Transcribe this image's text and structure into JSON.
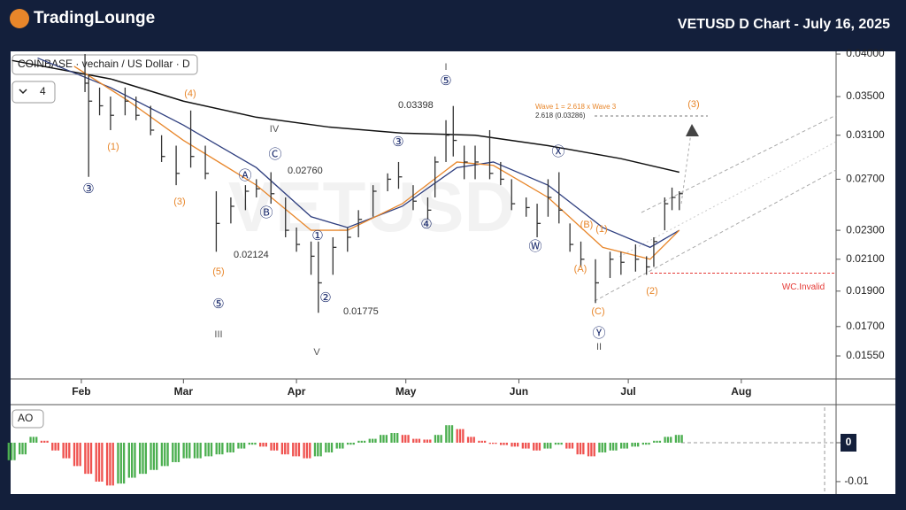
{
  "header": {
    "logo": "TradingLounge",
    "title": "VETUSD D Chart - July 16, 2025"
  },
  "chart_data": [
    {
      "type": "ohlc",
      "legend": "COINBASE · vechain / US Dollar · D",
      "interval_badge": 4,
      "watermark": "VETUSD",
      "log_scale": true,
      "bar_color": "#333333",
      "x": [
        33,
        34,
        37,
        40,
        44,
        47,
        51,
        54,
        58,
        62,
        66,
        69,
        73,
        77,
        80,
        84,
        88,
        91,
        95,
        97,
        101,
        105,
        108,
        112,
        116,
        119,
        123,
        127,
        129,
        132,
        134,
        137,
        140,
        144,
        147,
        150,
        154,
        157,
        160,
        163,
        166,
        169,
        173,
        177,
        180,
        184,
        187,
        189,
        192,
        194,
        196
      ],
      "high": [
        0.04,
        0.0375,
        0.036,
        0.035,
        0.036,
        0.035,
        0.034,
        0.031,
        0.03,
        0.0335,
        0.03,
        0.026,
        0.0255,
        0.0265,
        0.027,
        0.0276,
        0.0255,
        0.0232,
        0.0222,
        0.0222,
        0.0225,
        0.0232,
        0.0245,
        0.0265,
        0.0275,
        0.0285,
        0.0265,
        0.0255,
        0.029,
        0.0325,
        0.03398,
        0.03,
        0.03,
        0.0315,
        0.0285,
        0.027,
        0.0255,
        0.025,
        0.027,
        0.0276,
        0.0235,
        0.0222,
        0.021,
        0.0215,
        0.0215,
        0.022,
        0.0212,
        0.0225,
        0.0255,
        0.0263,
        0.026
      ],
      "low": [
        0.0355,
        0.0272,
        0.033,
        0.0315,
        0.033,
        0.0325,
        0.031,
        0.0285,
        0.0265,
        0.028,
        0.027,
        0.0215,
        0.0235,
        0.0245,
        0.0255,
        0.025,
        0.0225,
        0.0215,
        0.02,
        0.01775,
        0.02,
        0.0215,
        0.0225,
        0.024,
        0.026,
        0.0262,
        0.0245,
        0.0238,
        0.0255,
        0.0285,
        0.029,
        0.027,
        0.027,
        0.027,
        0.0265,
        0.0245,
        0.024,
        0.0225,
        0.024,
        0.0235,
        0.0215,
        0.0205,
        0.0183,
        0.0198,
        0.02,
        0.0202,
        0.02,
        0.0205,
        0.023,
        0.0245,
        0.0245
      ],
      "close": [
        0.0365,
        0.0345,
        0.034,
        0.033,
        0.0345,
        0.033,
        0.0315,
        0.029,
        0.0275,
        0.029,
        0.0275,
        0.0235,
        0.0248,
        0.026,
        0.0262,
        0.0258,
        0.023,
        0.022,
        0.0212,
        0.0195,
        0.0218,
        0.0225,
        0.0238,
        0.026,
        0.027,
        0.0272,
        0.0252,
        0.0245,
        0.0285,
        0.031,
        0.0305,
        0.0285,
        0.0285,
        0.0275,
        0.027,
        0.025,
        0.0247,
        0.0235,
        0.0255,
        0.0245,
        0.022,
        0.021,
        0.0195,
        0.021,
        0.0208,
        0.021,
        0.0205,
        0.0222,
        0.025,
        0.0255,
        0.0258
      ],
      "series": [
        {
          "color": "#111111",
          "x": [
            13,
            40,
            60,
            80,
            100,
            120,
            140,
            160,
            180,
            196
          ],
          "values": [
            0.0392,
            0.037,
            0.0345,
            0.0328,
            0.0318,
            0.0312,
            0.031,
            0.03,
            0.0288,
            0.0276
          ]
        },
        {
          "color": "#2f3f7f",
          "x": [
            20,
            40,
            60,
            80,
            95,
            105,
            120,
            135,
            145,
            160,
            175,
            188,
            196
          ],
          "values": [
            0.0395,
            0.036,
            0.032,
            0.028,
            0.024,
            0.0232,
            0.0248,
            0.028,
            0.0285,
            0.0265,
            0.0232,
            0.0218,
            0.023
          ]
        },
        {
          "color": "#e8862a",
          "x": [
            30,
            45,
            60,
            80,
            95,
            105,
            120,
            135,
            145,
            160,
            175,
            188,
            196
          ],
          "values": [
            0.0385,
            0.0345,
            0.0305,
            0.0265,
            0.023,
            0.023,
            0.025,
            0.0285,
            0.0282,
            0.0255,
            0.0218,
            0.021,
            0.023
          ]
        }
      ],
      "xlim": [
        12.6,
        239
      ],
      "xticks": [
        {
          "value": 32,
          "label": "Feb"
        },
        {
          "value": 60,
          "label": "Mar"
        },
        {
          "value": 91,
          "label": "Apr"
        },
        {
          "value": 121,
          "label": "May"
        },
        {
          "value": 152,
          "label": "Jun"
        },
        {
          "value": 182,
          "label": "Jul"
        },
        {
          "value": 213,
          "label": "Aug"
        }
      ],
      "ylim": [
        0.01442,
        0.04034
      ],
      "yticks": [
        {
          "value": 0.04,
          "label": "0.04000"
        },
        {
          "value": 0.035,
          "label": "0.03500"
        },
        {
          "value": 0.031,
          "label": "0.03100"
        },
        {
          "value": 0.027,
          "label": "0.02700"
        },
        {
          "value": 0.023,
          "label": "0.02300"
        },
        {
          "value": 0.021,
          "label": "0.02100"
        },
        {
          "value": 0.019,
          "label": "0.01900"
        },
        {
          "value": 0.017,
          "label": "0.01700"
        },
        {
          "value": 0.0155,
          "label": "0.01550"
        }
      ],
      "annotations": [
        {
          "text": "(4)",
          "color": "#e8862a"
        },
        {
          "text": "(1)",
          "color": "#e8862a"
        },
        {
          "text": "③",
          "color": "#1f2f6f"
        },
        {
          "text": "(3)",
          "color": "#e8862a"
        },
        {
          "text": "IV",
          "color": "#555555"
        },
        {
          "text": "Ⓒ",
          "color": "#1f2f6f"
        },
        {
          "text": "Ⓐ",
          "color": "#1f2f6f"
        },
        {
          "text": "Ⓑ",
          "color": "#1f2f6f"
        },
        {
          "text": "0.02760",
          "color": "#333333"
        },
        {
          "text": "(5)",
          "color": "#e8862a"
        },
        {
          "text": "0.02124",
          "color": "#333333"
        },
        {
          "text": "⑤",
          "color": "#1f2f6f"
        },
        {
          "text": "III",
          "color": "#555555"
        },
        {
          "text": "①",
          "color": "#1f2f6f"
        },
        {
          "text": "②",
          "color": "#1f2f6f"
        },
        {
          "text": "0.01775",
          "color": "#333333"
        },
        {
          "text": "V",
          "color": "#555555"
        },
        {
          "text": "③",
          "color": "#1f2f6f"
        },
        {
          "text": "④",
          "color": "#1f2f6f"
        },
        {
          "text": "I",
          "color": "#555555"
        },
        {
          "text": "⑤",
          "color": "#1f2f6f"
        },
        {
          "text": "0.03398",
          "color": "#333333"
        },
        {
          "text": "Ⓧ",
          "color": "#1f2f6f"
        },
        {
          "text": "Ⓦ",
          "color": "#1f2f6f"
        },
        {
          "text": "(B)",
          "color": "#e8862a"
        },
        {
          "text": "(1)",
          "color": "#e8862a"
        },
        {
          "text": "(A)",
          "color": "#e8862a"
        },
        {
          "text": "(C)",
          "color": "#e8862a"
        },
        {
          "text": "Ⓨ",
          "color": "#1f2f6f"
        },
        {
          "text": "II",
          "color": "#555555"
        },
        {
          "text": "(2)",
          "color": "#e8862a"
        },
        {
          "text": "(3)",
          "color": "#e8862a"
        },
        {
          "text": "Wave 1 = 2.618 x Wave 3",
          "color": "#e8862a"
        },
        {
          "text": "2.618 (0.03286)",
          "color": "#333333"
        }
      ],
      "invalidation": {
        "label": "WC.Invalid",
        "value": 0.0201,
        "color": "#e53935"
      }
    },
    {
      "type": "bar",
      "title": "AO",
      "up_color": "#4caf50",
      "down_color": "#ef5350",
      "x": [
        13,
        16,
        19,
        22,
        25,
        28,
        31,
        34,
        37,
        40,
        43,
        46,
        49,
        52,
        55,
        58,
        61,
        64,
        67,
        70,
        73,
        76,
        79,
        82,
        85,
        88,
        91,
        94,
        97,
        100,
        103,
        106,
        109,
        112,
        115,
        118,
        121,
        124,
        127,
        130,
        133,
        136,
        139,
        142,
        145,
        148,
        151,
        154,
        157,
        160,
        163,
        166,
        169,
        172,
        175,
        178,
        181,
        184,
        187,
        190,
        193,
        196
      ],
      "values": [
        -0.0045,
        -0.003,
        0.0015,
        0.0005,
        -0.002,
        -0.004,
        -0.006,
        -0.008,
        -0.01,
        -0.011,
        -0.0105,
        -0.009,
        -0.008,
        -0.007,
        -0.006,
        -0.005,
        -0.004,
        -0.004,
        -0.0035,
        -0.003,
        -0.0025,
        -0.0015,
        -0.0005,
        -0.001,
        -0.002,
        -0.003,
        -0.0035,
        -0.004,
        -0.0035,
        -0.0025,
        -0.0015,
        -0.0005,
        0.0005,
        0.001,
        0.002,
        0.0025,
        0.002,
        0.001,
        0.0008,
        0.002,
        0.0045,
        0.0035,
        0.0015,
        0.0005,
        -0.0003,
        -0.0006,
        -0.001,
        -0.0015,
        -0.002,
        -0.0015,
        -0.0005,
        -0.0015,
        -0.003,
        -0.0035,
        -0.0025,
        -0.002,
        -0.0015,
        -0.001,
        -0.0005,
        0.0005,
        0.0015,
        0.002
      ],
      "xlim": [
        12.6,
        239
      ],
      "ylim": [
        -0.0132,
        0.0091
      ],
      "yticks": [
        0,
        -0.01
      ]
    }
  ]
}
